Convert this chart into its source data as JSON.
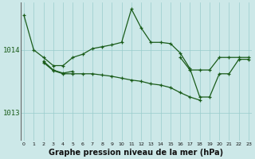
{
  "background_color": "#cce8e8",
  "grid_color": "#99cccc",
  "line_color": "#1a5c1a",
  "marker_color": "#1a5c1a",
  "xlabel": "Graphe pression niveau de la mer (hPa)",
  "xlabel_fontsize": 7,
  "ytick_labels": [
    "1013",
    "1014"
  ],
  "ytick_values": [
    1013.0,
    1014.0
  ],
  "ylim": [
    1012.55,
    1014.75
  ],
  "xlim": [
    -0.3,
    23.3
  ],
  "series": [
    {
      "x": [
        0,
        1,
        2,
        3,
        4,
        5,
        6,
        7,
        8,
        9,
        10,
        11,
        12,
        13,
        14,
        15,
        16,
        17,
        18,
        19,
        20,
        21,
        22,
        23
      ],
      "y": [
        1014.55,
        1014.0,
        1013.88,
        1013.75,
        1013.75,
        1013.88,
        1013.93,
        1014.02,
        1014.05,
        1014.08,
        1014.12,
        1014.65,
        1014.35,
        1014.12,
        1014.12,
        1014.1,
        1013.95,
        1013.7,
        1013.25,
        1013.25,
        1013.62,
        1013.62,
        1013.85,
        1013.85
      ]
    },
    {
      "x": [
        2,
        3,
        4,
        5
      ],
      "y": [
        1013.82,
        1013.68,
        1013.63,
        1013.66
      ]
    },
    {
      "x": [
        2,
        3,
        4,
        5,
        6,
        7,
        8,
        9,
        10,
        11,
        12,
        13,
        14,
        15,
        16,
        17,
        18
      ],
      "y": [
        1013.8,
        1013.67,
        1013.62,
        1013.62,
        1013.62,
        1013.62,
        1013.6,
        1013.58,
        1013.55,
        1013.52,
        1013.5,
        1013.46,
        1013.44,
        1013.4,
        1013.32,
        1013.25,
        1013.2
      ]
    },
    {
      "x": [
        16,
        17,
        18,
        19,
        20,
        21,
        22,
        23
      ],
      "y": [
        1013.88,
        1013.68,
        1013.68,
        1013.68,
        1013.88,
        1013.88,
        1013.88,
        1013.88
      ]
    }
  ]
}
